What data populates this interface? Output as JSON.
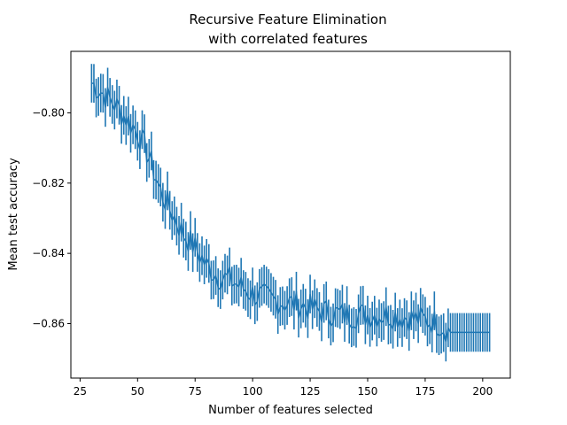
{
  "chart_data": {
    "type": "line",
    "title_line1": "Recursive Feature Elimination",
    "title_line2": "with correlated features",
    "xlabel": "Number of features selected",
    "ylabel": "Mean test accuracy",
    "xlim": [
      21,
      212
    ],
    "ylim": [
      -0.8755,
      -0.7825
    ],
    "xticks": [
      25,
      50,
      75,
      100,
      125,
      150,
      175,
      200
    ],
    "xtick_labels": [
      "25",
      "50",
      "75",
      "100",
      "125",
      "150",
      "175",
      "200"
    ],
    "yticks": [
      -0.8,
      -0.82,
      -0.84,
      -0.86
    ],
    "ytick_labels": [
      "−0.80",
      "−0.82",
      "−0.84",
      "−0.86"
    ],
    "grid": false,
    "color": "#1f77b4",
    "series": [
      {
        "x_start": 30,
        "x_end": 203,
        "control_x": [
          30,
          35,
          40,
          45,
          50,
          55,
          60,
          65,
          70,
          75,
          80,
          85,
          90,
          95,
          100,
          110,
          120,
          130,
          140,
          150,
          160,
          170,
          180,
          186,
          203
        ],
        "control_y": [
          -0.7915,
          -0.7945,
          -0.7975,
          -0.8015,
          -0.8055,
          -0.8125,
          -0.8225,
          -0.8285,
          -0.8345,
          -0.8385,
          -0.8435,
          -0.8465,
          -0.8475,
          -0.8495,
          -0.8515,
          -0.8535,
          -0.8545,
          -0.8565,
          -0.8575,
          -0.8575,
          -0.8575,
          -0.8585,
          -0.8595,
          -0.8625,
          -0.8625
        ],
        "error_half_width": 0.0055,
        "noise_amplitude": 0.004
      }
    ]
  }
}
